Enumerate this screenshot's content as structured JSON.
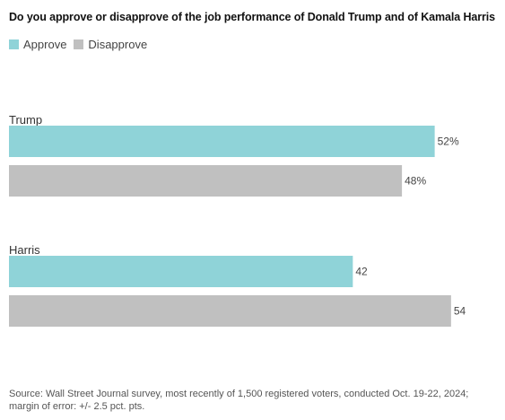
{
  "chart_data": {
    "type": "bar",
    "orientation": "horizontal",
    "title": "Do you approve or disapprove of the job performance of Donald Trump and of Kamala Harris",
    "legend": [
      {
        "label": "Approve",
        "color": "#8fd3d8"
      },
      {
        "label": "Disapprove",
        "color": "#c0c0c0"
      }
    ],
    "legend_position": "top-left",
    "categories": [
      "Trump",
      "Harris"
    ],
    "series": [
      {
        "name": "Approve",
        "color": "#8fd3d8",
        "values": [
          52,
          42
        ],
        "labels": [
          "52%",
          "42"
        ]
      },
      {
        "name": "Disapprove",
        "color": "#c0c0c0",
        "values": [
          48,
          54
        ],
        "labels": [
          "48%",
          "54"
        ]
      }
    ],
    "xlim": [
      0,
      55
    ],
    "grid": false
  },
  "source": {
    "line1": "Source: Wall Street Journal survey, most recently of 1,500 registered voters, conducted Oct. 19-22, 2024;",
    "line2": "margin of error: +/- 2.5 pct. pts."
  }
}
